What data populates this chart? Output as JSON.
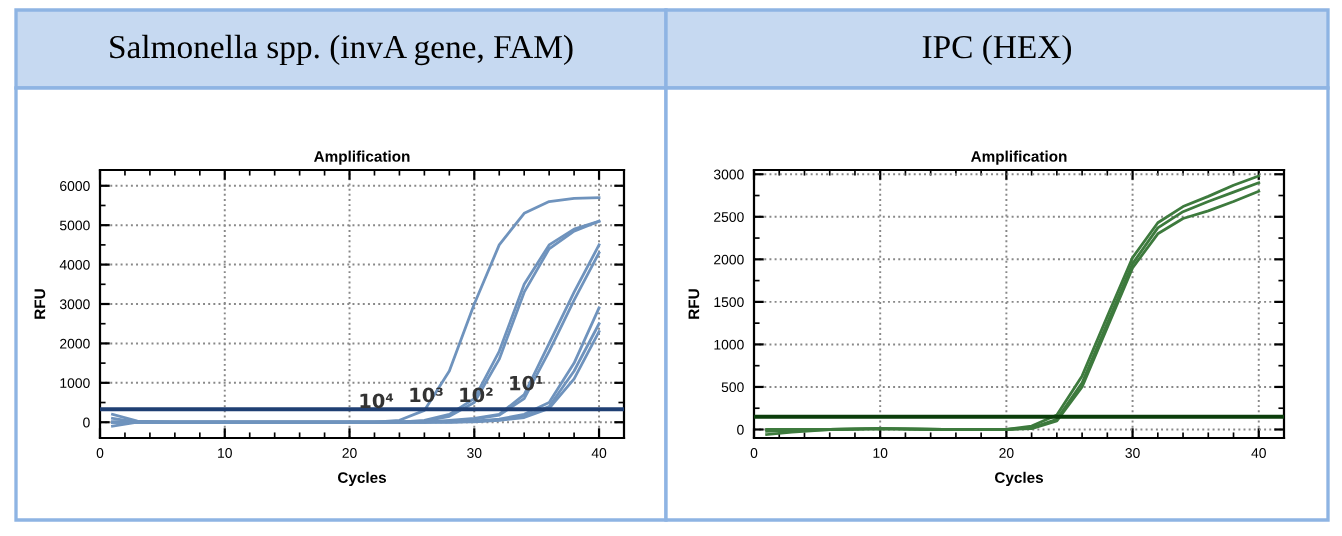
{
  "chart_data": [
    {
      "type": "line",
      "title": "Salmonella spp. (invA gene, FAM)",
      "subtitle": "Amplification",
      "xlabel": "Cycles",
      "ylabel": "RFU",
      "x": [
        1,
        3,
        6,
        10,
        15,
        20,
        22,
        24,
        26,
        28,
        30,
        32,
        34,
        36,
        38,
        40
      ],
      "series": [
        {
          "color": "#6f93bd",
          "values": [
            200,
            30,
            0,
            0,
            0,
            0,
            0,
            50,
            300,
            1300,
            3000,
            4500,
            5300,
            5600,
            5680,
            5700
          ]
        },
        {
          "color": "#6f93bd",
          "values": [
            -100,
            0,
            0,
            0,
            0,
            0,
            0,
            0,
            50,
            200,
            600,
            1800,
            3500,
            4500,
            4900,
            5100
          ]
        },
        {
          "color": "#6f93bd",
          "values": [
            100,
            0,
            0,
            0,
            0,
            0,
            0,
            0,
            30,
            150,
            500,
            1600,
            3300,
            4400,
            4850,
            5100
          ]
        },
        {
          "color": "#6f93bd",
          "values": [
            0,
            0,
            0,
            0,
            0,
            0,
            0,
            0,
            0,
            50,
            100,
            200,
            700,
            2000,
            3300,
            4500
          ]
        },
        {
          "color": "#6f93bd",
          "values": [
            0,
            0,
            0,
            0,
            0,
            0,
            0,
            0,
            0,
            30,
            80,
            180,
            600,
            1800,
            3100,
            4300
          ]
        },
        {
          "color": "#6f93bd",
          "values": [
            0,
            0,
            0,
            0,
            0,
            0,
            0,
            0,
            0,
            0,
            30,
            80,
            200,
            500,
            1500,
            2900
          ]
        },
        {
          "color": "#6f93bd",
          "values": [
            0,
            0,
            0,
            0,
            0,
            0,
            0,
            0,
            0,
            0,
            20,
            60,
            150,
            400,
            1300,
            2500
          ]
        },
        {
          "color": "#6f93bd",
          "values": [
            0,
            0,
            0,
            0,
            0,
            0,
            0,
            0,
            0,
            0,
            10,
            50,
            120,
            350,
            1100,
            2300
          ]
        }
      ],
      "ref_lines": [
        {
          "axis": "y",
          "value": 330,
          "color": "#1f3f73"
        }
      ],
      "annotations": [
        {
          "text": "10⁴",
          "x": 24,
          "y": 50
        },
        {
          "text": "10³",
          "x": 28,
          "y": 200
        },
        {
          "text": "10²",
          "x": 32,
          "y": 200
        },
        {
          "text": "10¹",
          "x": 36,
          "y": 500
        }
      ],
      "xlim": [
        0,
        42
      ],
      "ylim": [
        -400,
        6400
      ],
      "xticks": [
        0,
        10,
        20,
        30,
        40
      ],
      "yticks": [
        0,
        1000,
        2000,
        3000,
        4000,
        5000,
        6000
      ],
      "grid": true,
      "line_style": "solid",
      "marker": "none"
    },
    {
      "type": "line",
      "title": "IPC (HEX)",
      "subtitle": "Amplification",
      "xlabel": "Cycles",
      "ylabel": "RFU",
      "x": [
        1,
        3,
        6,
        10,
        15,
        20,
        22,
        24,
        26,
        28,
        30,
        32,
        34,
        36,
        38,
        40
      ],
      "series": [
        {
          "color": "#3d7a3d",
          "values": [
            -60,
            -30,
            0,
            10,
            0,
            0,
            40,
            170,
            630,
            1330,
            2020,
            2430,
            2620,
            2740,
            2870,
            2980
          ]
        },
        {
          "color": "#3d7a3d",
          "values": [
            -20,
            -10,
            0,
            10,
            0,
            0,
            20,
            120,
            550,
            1250,
            1950,
            2370,
            2560,
            2680,
            2790,
            2900
          ]
        },
        {
          "color": "#3d7a3d",
          "values": [
            0,
            0,
            0,
            10,
            0,
            0,
            10,
            100,
            500,
            1200,
            1900,
            2300,
            2480,
            2570,
            2680,
            2800
          ]
        }
      ],
      "ref_lines": [
        {
          "axis": "y",
          "value": 150,
          "color": "#0b3d0b"
        }
      ],
      "xlim": [
        0,
        42
      ],
      "ylim": [
        -100,
        3050
      ],
      "xticks": [
        0,
        10,
        20,
        30,
        40
      ],
      "yticks": [
        0,
        500,
        1000,
        1500,
        2000,
        2500,
        3000
      ],
      "grid": true,
      "line_style": "solid",
      "marker": "none"
    }
  ]
}
